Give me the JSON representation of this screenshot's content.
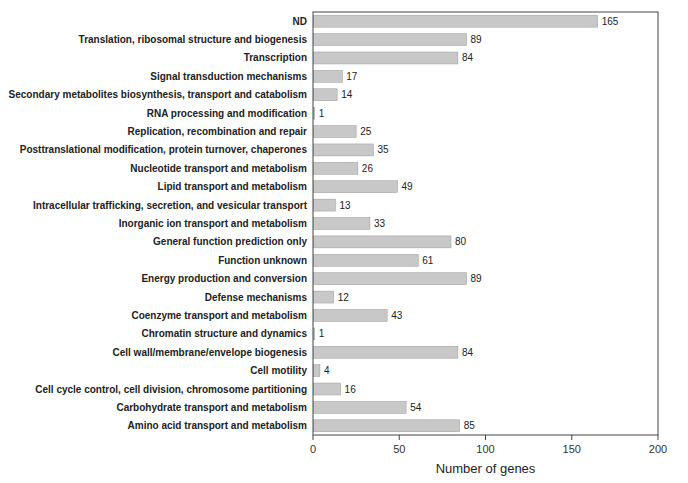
{
  "chart_data": {
    "type": "bar",
    "orientation": "horizontal",
    "xlabel": "Number of genes",
    "categories": [
      "ND",
      "Translation, ribosomal structure and biogenesis",
      "Transcription",
      "Signal transduction mechanisms",
      "Secondary metabolites biosynthesis, transport and catabolism",
      "RNA processing and modification",
      "Replication, recombination and repair",
      "Posttranslational modification, protein turnover, chaperones",
      "Nucleotide transport and metabolism",
      "Lipid transport and metabolism",
      "Intracellular trafficking, secretion, and vesicular transport",
      "Inorganic ion transport and metabolism",
      "General function prediction only",
      "Function unknown",
      "Energy production and conversion",
      "Defense mechanisms",
      "Coenzyme transport and metabolism",
      "Chromatin structure and dynamics",
      "Cell wall/membrane/envelope biogenesis",
      "Cell motility",
      "Cell cycle control, cell division, chromosome partitioning",
      "Carbohydrate transport and metabolism",
      "Amino acid transport and metabolism"
    ],
    "values": [
      165,
      89,
      84,
      17,
      14,
      1,
      25,
      35,
      26,
      49,
      13,
      33,
      80,
      61,
      89,
      12,
      43,
      1,
      84,
      4,
      16,
      54,
      85
    ],
    "color": "#c8c8c8",
    "xlim": [
      0,
      200
    ],
    "xticks": [
      0,
      50,
      100,
      150,
      200
    ],
    "data_labels": true,
    "grid": false
  }
}
